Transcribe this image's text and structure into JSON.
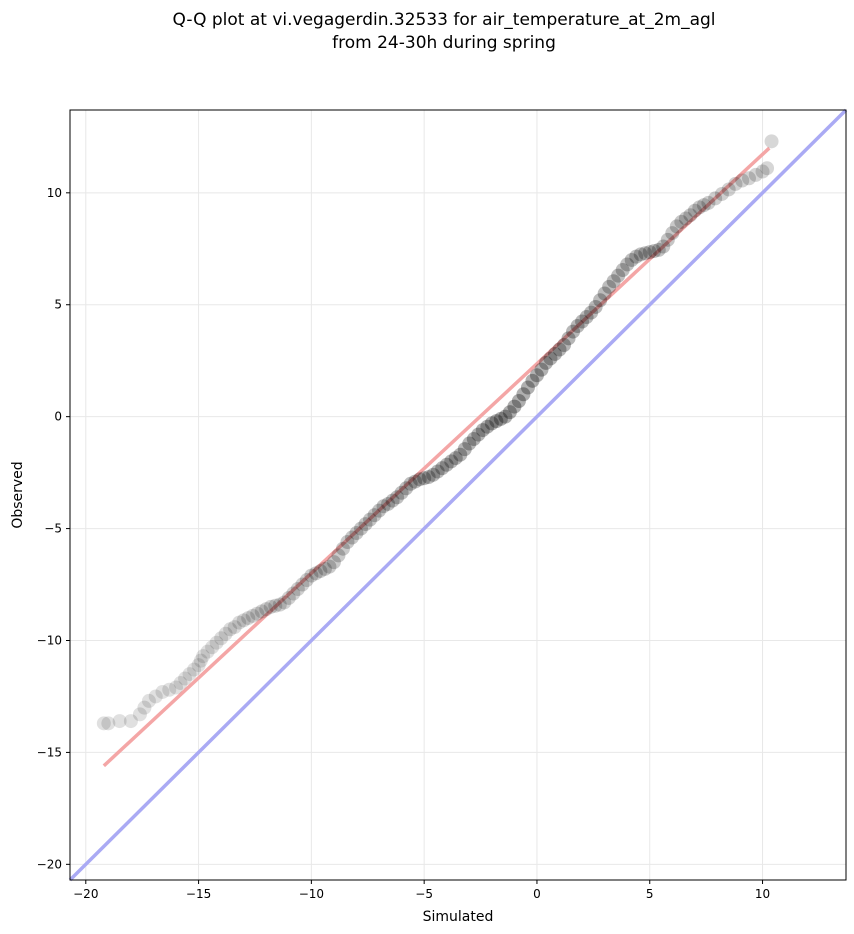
{
  "chart_data": {
    "type": "scatter",
    "title": "Q-Q plot at vi.vegagerdin.32533 for air_temperature_at_2m_agl",
    "subtitle": "from 24-30h during spring",
    "xlabel": "Simulated",
    "ylabel": "Observed",
    "xlim": [
      -20.7,
      13.7
    ],
    "ylim": [
      -20.7,
      13.7
    ],
    "x_ticks": [
      -20,
      -15,
      -10,
      -5,
      0,
      5,
      10
    ],
    "y_ticks": [
      -20,
      -15,
      -10,
      -5,
      0,
      5,
      10
    ],
    "x_tick_labels": [
      "−20",
      "−15",
      "−10",
      "−5",
      "0",
      "5",
      "10"
    ],
    "y_tick_labels": [
      "−20",
      "−15",
      "−10",
      "−5",
      "0",
      "5",
      "10"
    ],
    "grid": true,
    "series": [
      {
        "kind": "quantiles",
        "color": "#000000",
        "points": [
          [
            -19.2,
            -13.7
          ],
          [
            -19.0,
            -13.7
          ],
          [
            -18.5,
            -13.6
          ],
          [
            -18.0,
            -13.6
          ],
          [
            -17.6,
            -13.3
          ],
          [
            -17.4,
            -13.0
          ],
          [
            -17.2,
            -12.7
          ],
          [
            -16.9,
            -12.5
          ],
          [
            -16.6,
            -12.3
          ],
          [
            -16.3,
            -12.2
          ],
          [
            -16.0,
            -12.1
          ],
          [
            -15.8,
            -11.9
          ],
          [
            -15.6,
            -11.7
          ],
          [
            -15.4,
            -11.5
          ],
          [
            -15.2,
            -11.3
          ],
          [
            -15.0,
            -11.1
          ],
          [
            -14.9,
            -10.9
          ],
          [
            -14.8,
            -10.7
          ],
          [
            -14.6,
            -10.5
          ],
          [
            -14.4,
            -10.3
          ],
          [
            -14.2,
            -10.1
          ],
          [
            -14.0,
            -9.9
          ],
          [
            -13.8,
            -9.7
          ],
          [
            -13.6,
            -9.5
          ],
          [
            -13.4,
            -9.4
          ],
          [
            -13.2,
            -9.2
          ],
          [
            -13.0,
            -9.1
          ],
          [
            -12.8,
            -9.0
          ],
          [
            -12.6,
            -8.9
          ],
          [
            -12.4,
            -8.8
          ],
          [
            -12.2,
            -8.7
          ],
          [
            -12.0,
            -8.6
          ],
          [
            -11.8,
            -8.5
          ],
          [
            -11.6,
            -8.45
          ],
          [
            -11.4,
            -8.4
          ],
          [
            -11.2,
            -8.3
          ],
          [
            -11.0,
            -8.1
          ],
          [
            -10.8,
            -7.9
          ],
          [
            -10.6,
            -7.7
          ],
          [
            -10.4,
            -7.5
          ],
          [
            -10.2,
            -7.3
          ],
          [
            -10.0,
            -7.1
          ],
          [
            -9.8,
            -7.0
          ],
          [
            -9.6,
            -6.9
          ],
          [
            -9.4,
            -6.8
          ],
          [
            -9.2,
            -6.7
          ],
          [
            -9.0,
            -6.5
          ],
          [
            -8.8,
            -6.2
          ],
          [
            -8.6,
            -5.9
          ],
          [
            -8.4,
            -5.6
          ],
          [
            -8.2,
            -5.4
          ],
          [
            -8.0,
            -5.2
          ],
          [
            -7.8,
            -5.0
          ],
          [
            -7.6,
            -4.8
          ],
          [
            -7.4,
            -4.6
          ],
          [
            -7.2,
            -4.4
          ],
          [
            -7.0,
            -4.2
          ],
          [
            -6.8,
            -4.0
          ],
          [
            -6.6,
            -3.9
          ],
          [
            -6.4,
            -3.75
          ],
          [
            -6.2,
            -3.6
          ],
          [
            -6.0,
            -3.4
          ],
          [
            -5.8,
            -3.2
          ],
          [
            -5.6,
            -3.0
          ],
          [
            -5.4,
            -2.9
          ],
          [
            -5.2,
            -2.8
          ],
          [
            -5.0,
            -2.75
          ],
          [
            -4.8,
            -2.7
          ],
          [
            -4.6,
            -2.6
          ],
          [
            -4.4,
            -2.45
          ],
          [
            -4.2,
            -2.3
          ],
          [
            -4.0,
            -2.15
          ],
          [
            -3.8,
            -2.0
          ],
          [
            -3.6,
            -1.85
          ],
          [
            -3.4,
            -1.7
          ],
          [
            -3.2,
            -1.45
          ],
          [
            -3.0,
            -1.2
          ],
          [
            -2.8,
            -1.0
          ],
          [
            -2.6,
            -0.8
          ],
          [
            -2.4,
            -0.6
          ],
          [
            -2.2,
            -0.45
          ],
          [
            -2.0,
            -0.3
          ],
          [
            -1.8,
            -0.2
          ],
          [
            -1.6,
            -0.1
          ],
          [
            -1.4,
            0.0
          ],
          [
            -1.2,
            0.2
          ],
          [
            -1.0,
            0.45
          ],
          [
            -0.8,
            0.7
          ],
          [
            -0.6,
            1.0
          ],
          [
            -0.4,
            1.3
          ],
          [
            -0.2,
            1.6
          ],
          [
            0.0,
            1.85
          ],
          [
            0.2,
            2.1
          ],
          [
            0.4,
            2.4
          ],
          [
            0.6,
            2.6
          ],
          [
            0.8,
            2.8
          ],
          [
            1.0,
            3.0
          ],
          [
            1.2,
            3.2
          ],
          [
            1.4,
            3.5
          ],
          [
            1.6,
            3.8
          ],
          [
            1.8,
            4.05
          ],
          [
            2.0,
            4.25
          ],
          [
            2.2,
            4.45
          ],
          [
            2.4,
            4.65
          ],
          [
            2.6,
            4.9
          ],
          [
            2.8,
            5.2
          ],
          [
            3.0,
            5.5
          ],
          [
            3.2,
            5.8
          ],
          [
            3.4,
            6.05
          ],
          [
            3.6,
            6.3
          ],
          [
            3.8,
            6.55
          ],
          [
            4.0,
            6.8
          ],
          [
            4.2,
            7.0
          ],
          [
            4.4,
            7.15
          ],
          [
            4.6,
            7.25
          ],
          [
            4.8,
            7.3
          ],
          [
            5.0,
            7.35
          ],
          [
            5.2,
            7.4
          ],
          [
            5.4,
            7.45
          ],
          [
            5.6,
            7.6
          ],
          [
            5.8,
            7.9
          ],
          [
            6.0,
            8.2
          ],
          [
            6.2,
            8.5
          ],
          [
            6.4,
            8.7
          ],
          [
            6.6,
            8.85
          ],
          [
            6.8,
            9.0
          ],
          [
            7.0,
            9.2
          ],
          [
            7.2,
            9.35
          ],
          [
            7.4,
            9.45
          ],
          [
            7.6,
            9.55
          ],
          [
            7.9,
            9.75
          ],
          [
            8.2,
            9.95
          ],
          [
            8.5,
            10.15
          ],
          [
            8.8,
            10.4
          ],
          [
            9.1,
            10.55
          ],
          [
            9.4,
            10.65
          ],
          [
            9.7,
            10.8
          ],
          [
            10.0,
            10.95
          ],
          [
            10.2,
            11.1
          ],
          [
            10.4,
            12.3
          ]
        ]
      },
      {
        "kind": "fit-line",
        "color": "#f4a6a6",
        "x": [
          -19.2,
          10.3
        ],
        "y": [
          -15.6,
          12.0
        ]
      },
      {
        "kind": "one-to-one",
        "color": "#aaaaf4",
        "x": [
          -20.7,
          13.7
        ],
        "y": [
          -20.7,
          13.7
        ]
      }
    ],
    "legend": "none"
  }
}
